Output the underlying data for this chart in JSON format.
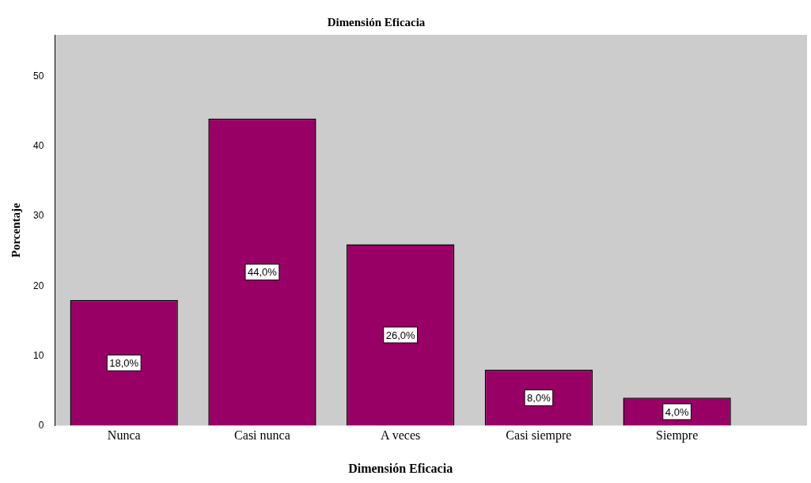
{
  "chart_data": {
    "type": "bar",
    "title": "Dimensión Eficacia",
    "xlabel": "Dimensión Eficacia",
    "ylabel": "Porcentaje",
    "categories": [
      "Nunca",
      "Casi nunca",
      "A veces",
      "Casi siempre",
      "Siempre"
    ],
    "values": [
      18,
      44,
      26,
      8,
      4
    ],
    "color": "#990066",
    "value_labels": [
      "18,0%",
      "44,0%",
      "26,0%",
      "8,0%",
      "4,0%"
    ],
    "ylim": [
      0,
      56
    ],
    "yticks": [
      0,
      10,
      20,
      30,
      40,
      50
    ],
    "grid": false,
    "legend": false
  }
}
